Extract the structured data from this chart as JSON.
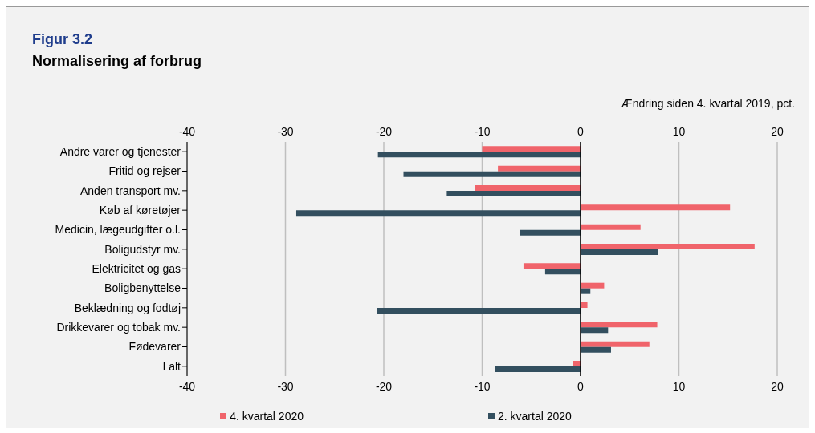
{
  "chart_data": {
    "type": "bar",
    "title": "Figur 3.2",
    "subtitle": "Normalisering af forbrug",
    "x2label": "Ændring siden 4. kvartal 2019, pct.",
    "orientation": "horizontal",
    "categories": [
      "Andre varer og tjenester",
      "Fritid og rejser",
      "Anden transport mv.",
      "Køb af køretøjer",
      "Medicin, lægeudgifter o.l.",
      "Boligudstyr mv.",
      "Elektricitet og gas",
      "Boligbenyttelse",
      "Beklædning og fodtøj",
      "Drikkevarer og tobak mv.",
      "Fødevarer",
      "I alt"
    ],
    "series": [
      {
        "name": "4. kvartal 2020",
        "color": "#f0646b",
        "values": [
          -10.0,
          -8.4,
          -10.7,
          15.2,
          6.1,
          17.7,
          -5.8,
          2.4,
          0.7,
          7.8,
          7.0,
          -0.8
        ]
      },
      {
        "name": "2. kvartal 2020",
        "color": "#334f5f",
        "values": [
          -20.6,
          -18.0,
          -13.6,
          -28.9,
          -6.2,
          7.9,
          -3.6,
          1.0,
          -20.7,
          2.8,
          3.1,
          -8.7
        ]
      }
    ],
    "xlim": [
      -40,
      20
    ],
    "xticks": [
      -40,
      -30,
      -20,
      -10,
      0,
      10,
      20
    ],
    "x2lim": [
      -40,
      20
    ],
    "x2ticks": [
      -40,
      -30,
      -20,
      -10,
      0,
      10,
      20
    ],
    "grid": "x",
    "legend": "bottom"
  }
}
